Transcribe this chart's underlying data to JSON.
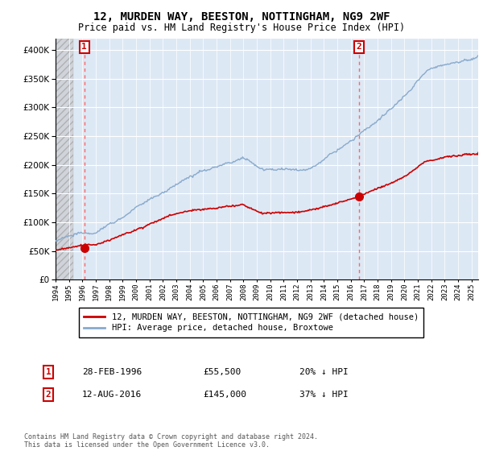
{
  "title": "12, MURDEN WAY, BEESTON, NOTTINGHAM, NG9 2WF",
  "subtitle": "Price paid vs. HM Land Registry's House Price Index (HPI)",
  "ylim": [
    0,
    420000
  ],
  "yticks": [
    0,
    50000,
    100000,
    150000,
    200000,
    250000,
    300000,
    350000,
    400000
  ],
  "ytick_labels": [
    "£0",
    "£50K",
    "£100K",
    "£150K",
    "£200K",
    "£250K",
    "£300K",
    "£350K",
    "£400K"
  ],
  "hpi_color": "#88aacc",
  "price_color": "#cc0000",
  "marker_color": "#cc0000",
  "vline_color": "#ff6666",
  "annotation_box_color": "#cc0000",
  "background_plot": "#dde8f5",
  "grid_color": "#ffffff",
  "legend_label_price": "12, MURDEN WAY, BEESTON, NOTTINGHAM, NG9 2WF (detached house)",
  "legend_label_hpi": "HPI: Average price, detached house, Broxtowe",
  "point1_date": "28-FEB-1996",
  "point1_price": "£55,500",
  "point1_hpi": "20% ↓ HPI",
  "point2_date": "12-AUG-2016",
  "point2_price": "£145,000",
  "point2_hpi": "37% ↓ HPI",
  "point1_x": 1996.15,
  "point1_y": 55500,
  "point2_x": 2016.62,
  "point2_y": 145000,
  "copyright": "Contains HM Land Registry data © Crown copyright and database right 2024.\nThis data is licensed under the Open Government Licence v3.0.",
  "xmin": 1994,
  "xmax": 2025.5
}
